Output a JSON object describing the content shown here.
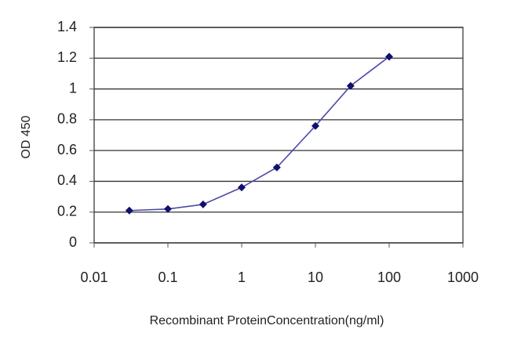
{
  "chart_data": {
    "type": "line",
    "x": [
      0.03,
      0.1,
      0.3,
      1,
      3,
      10,
      30,
      100
    ],
    "values": [
      0.21,
      0.22,
      0.25,
      0.36,
      0.49,
      0.76,
      1.02,
      1.21
    ],
    "color": "#4a4aa8",
    "marker_color": "#10106e",
    "xlabel": "Recombinant ProteinConcentration(ng/ml)",
    "ylabel": "OD 450",
    "xscale": "log",
    "xlim": [
      0.01,
      1000
    ],
    "xticks": [
      0.01,
      0.1,
      1,
      10,
      100,
      1000
    ],
    "ylim": [
      0,
      1.4
    ],
    "yticks": [
      0,
      0.2,
      0.4,
      0.6,
      0.8,
      1,
      1.2,
      1.4
    ],
    "grid": true
  }
}
